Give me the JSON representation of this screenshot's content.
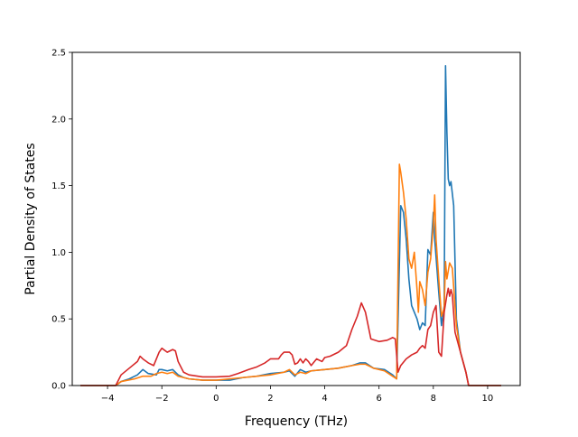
{
  "chart_data": {
    "type": "line",
    "title": "",
    "xlabel": "Frequency (THz)",
    "ylabel": "Partial Density of States",
    "xlim": [
      -5.3,
      11.2
    ],
    "ylim": [
      0,
      2.5
    ],
    "xticks": [
      -4,
      -2,
      0,
      2,
      4,
      6,
      8,
      10
    ],
    "xtick_labels": [
      "−4",
      "−2",
      "0",
      "2",
      "4",
      "6",
      "8",
      "10"
    ],
    "yticks": [
      0,
      0.5,
      1.0,
      1.5,
      2.0,
      2.5
    ],
    "ytick_labels": [
      "0.0",
      "0.5",
      "1.0",
      "1.5",
      "2.0",
      "2.5"
    ],
    "grid": false,
    "legend": "none",
    "series": [
      {
        "color": "#1f77b4",
        "points": [
          [
            -5.0,
            0
          ],
          [
            -3.7,
            0
          ],
          [
            -3.5,
            0.03
          ],
          [
            -3.2,
            0.05
          ],
          [
            -2.9,
            0.08
          ],
          [
            -2.7,
            0.12
          ],
          [
            -2.5,
            0.09
          ],
          [
            -2.2,
            0.08
          ],
          [
            -2.1,
            0.12
          ],
          [
            -2.0,
            0.12
          ],
          [
            -1.8,
            0.11
          ],
          [
            -1.6,
            0.12
          ],
          [
            -1.4,
            0.08
          ],
          [
            -1.2,
            0.06
          ],
          [
            -1.0,
            0.05
          ],
          [
            -0.5,
            0.04
          ],
          [
            0,
            0.04
          ],
          [
            0.5,
            0.04
          ],
          [
            1.0,
            0.06
          ],
          [
            1.5,
            0.07
          ],
          [
            2.0,
            0.09
          ],
          [
            2.5,
            0.1
          ],
          [
            2.7,
            0.11
          ],
          [
            2.9,
            0.07
          ],
          [
            3.1,
            0.12
          ],
          [
            3.3,
            0.1
          ],
          [
            3.5,
            0.11
          ],
          [
            4.0,
            0.12
          ],
          [
            4.5,
            0.13
          ],
          [
            5.0,
            0.15
          ],
          [
            5.3,
            0.17
          ],
          [
            5.5,
            0.17
          ],
          [
            5.8,
            0.13
          ],
          [
            6.2,
            0.12
          ],
          [
            6.5,
            0.08
          ],
          [
            6.65,
            0.05
          ],
          [
            6.8,
            1.35
          ],
          [
            6.9,
            1.3
          ],
          [
            7.0,
            1.1
          ],
          [
            7.1,
            0.8
          ],
          [
            7.2,
            0.6
          ],
          [
            7.4,
            0.5
          ],
          [
            7.5,
            0.42
          ],
          [
            7.6,
            0.47
          ],
          [
            7.7,
            0.45
          ],
          [
            7.8,
            1.02
          ],
          [
            7.9,
            0.98
          ],
          [
            8.0,
            1.3
          ],
          [
            8.05,
            1.1
          ],
          [
            8.2,
            0.7
          ],
          [
            8.3,
            0.45
          ],
          [
            8.4,
            0.6
          ],
          [
            8.45,
            2.4
          ],
          [
            8.5,
            1.9
          ],
          [
            8.55,
            1.55
          ],
          [
            8.6,
            1.5
          ],
          [
            8.65,
            1.53
          ],
          [
            8.75,
            1.35
          ],
          [
            8.85,
            0.5
          ],
          [
            9.0,
            0.25
          ],
          [
            9.2,
            0.1
          ],
          [
            9.3,
            0
          ],
          [
            10.5,
            0
          ]
        ]
      },
      {
        "color": "#ff7f0e",
        "points": [
          [
            -5.0,
            0
          ],
          [
            -3.7,
            0
          ],
          [
            -3.5,
            0.03
          ],
          [
            -3.0,
            0.05
          ],
          [
            -2.7,
            0.07
          ],
          [
            -2.4,
            0.07
          ],
          [
            -2.2,
            0.09
          ],
          [
            -2.0,
            0.1
          ],
          [
            -1.8,
            0.09
          ],
          [
            -1.6,
            0.1
          ],
          [
            -1.4,
            0.07
          ],
          [
            -1.2,
            0.06
          ],
          [
            -1.0,
            0.05
          ],
          [
            -0.5,
            0.04
          ],
          [
            0,
            0.04
          ],
          [
            0.5,
            0.05
          ],
          [
            1.0,
            0.06
          ],
          [
            1.5,
            0.07
          ],
          [
            2.0,
            0.08
          ],
          [
            2.5,
            0.1
          ],
          [
            2.7,
            0.12
          ],
          [
            2.9,
            0.08
          ],
          [
            3.1,
            0.1
          ],
          [
            3.3,
            0.09
          ],
          [
            3.5,
            0.11
          ],
          [
            4.0,
            0.12
          ],
          [
            4.5,
            0.13
          ],
          [
            5.0,
            0.15
          ],
          [
            5.3,
            0.16
          ],
          [
            5.5,
            0.16
          ],
          [
            5.8,
            0.13
          ],
          [
            6.2,
            0.11
          ],
          [
            6.5,
            0.07
          ],
          [
            6.65,
            0.05
          ],
          [
            6.75,
            1.66
          ],
          [
            6.8,
            1.6
          ],
          [
            6.9,
            1.45
          ],
          [
            7.0,
            1.25
          ],
          [
            7.1,
            0.95
          ],
          [
            7.2,
            0.88
          ],
          [
            7.3,
            1.0
          ],
          [
            7.4,
            0.72
          ],
          [
            7.45,
            0.55
          ],
          [
            7.5,
            0.78
          ],
          [
            7.6,
            0.72
          ],
          [
            7.7,
            0.6
          ],
          [
            7.8,
            0.85
          ],
          [
            7.9,
            0.95
          ],
          [
            8.0,
            1.2
          ],
          [
            8.05,
            1.43
          ],
          [
            8.1,
            1.1
          ],
          [
            8.2,
            0.8
          ],
          [
            8.3,
            0.52
          ],
          [
            8.4,
            0.58
          ],
          [
            8.45,
            0.93
          ],
          [
            8.5,
            0.8
          ],
          [
            8.6,
            0.92
          ],
          [
            8.7,
            0.88
          ],
          [
            8.85,
            0.45
          ],
          [
            9.0,
            0.25
          ],
          [
            9.2,
            0.1
          ],
          [
            9.3,
            0
          ],
          [
            10.5,
            0
          ]
        ]
      },
      {
        "color": "#d62728",
        "points": [
          [
            -5.0,
            0
          ],
          [
            -3.7,
            0
          ],
          [
            -3.6,
            0.04
          ],
          [
            -3.5,
            0.08
          ],
          [
            -3.2,
            0.13
          ],
          [
            -2.9,
            0.18
          ],
          [
            -2.8,
            0.22
          ],
          [
            -2.7,
            0.2
          ],
          [
            -2.5,
            0.17
          ],
          [
            -2.3,
            0.15
          ],
          [
            -2.1,
            0.25
          ],
          [
            -2.0,
            0.28
          ],
          [
            -1.8,
            0.25
          ],
          [
            -1.6,
            0.27
          ],
          [
            -1.5,
            0.26
          ],
          [
            -1.4,
            0.18
          ],
          [
            -1.2,
            0.1
          ],
          [
            -1.0,
            0.08
          ],
          [
            -0.5,
            0.065
          ],
          [
            0,
            0.065
          ],
          [
            0.5,
            0.07
          ],
          [
            0.8,
            0.09
          ],
          [
            1.2,
            0.12
          ],
          [
            1.5,
            0.14
          ],
          [
            1.8,
            0.17
          ],
          [
            2.0,
            0.2
          ],
          [
            2.3,
            0.2
          ],
          [
            2.4,
            0.23
          ],
          [
            2.5,
            0.25
          ],
          [
            2.7,
            0.25
          ],
          [
            2.8,
            0.23
          ],
          [
            2.9,
            0.16
          ],
          [
            3.0,
            0.17
          ],
          [
            3.1,
            0.2
          ],
          [
            3.2,
            0.17
          ],
          [
            3.3,
            0.2
          ],
          [
            3.4,
            0.18
          ],
          [
            3.5,
            0.15
          ],
          [
            3.7,
            0.2
          ],
          [
            3.9,
            0.18
          ],
          [
            4.0,
            0.21
          ],
          [
            4.2,
            0.22
          ],
          [
            4.5,
            0.25
          ],
          [
            4.8,
            0.3
          ],
          [
            5.0,
            0.42
          ],
          [
            5.2,
            0.52
          ],
          [
            5.35,
            0.62
          ],
          [
            5.5,
            0.55
          ],
          [
            5.6,
            0.45
          ],
          [
            5.7,
            0.35
          ],
          [
            6.0,
            0.33
          ],
          [
            6.3,
            0.34
          ],
          [
            6.5,
            0.36
          ],
          [
            6.6,
            0.35
          ],
          [
            6.7,
            0.1
          ],
          [
            6.8,
            0.15
          ],
          [
            7.0,
            0.2
          ],
          [
            7.2,
            0.23
          ],
          [
            7.4,
            0.25
          ],
          [
            7.5,
            0.28
          ],
          [
            7.6,
            0.3
          ],
          [
            7.7,
            0.28
          ],
          [
            7.8,
            0.42
          ],
          [
            7.9,
            0.45
          ],
          [
            8.0,
            0.55
          ],
          [
            8.1,
            0.6
          ],
          [
            8.2,
            0.25
          ],
          [
            8.3,
            0.22
          ],
          [
            8.4,
            0.55
          ],
          [
            8.5,
            0.68
          ],
          [
            8.55,
            0.73
          ],
          [
            8.6,
            0.67
          ],
          [
            8.65,
            0.72
          ],
          [
            8.7,
            0.68
          ],
          [
            8.8,
            0.4
          ],
          [
            9.0,
            0.25
          ],
          [
            9.2,
            0.1
          ],
          [
            9.3,
            0
          ],
          [
            10.5,
            0
          ]
        ]
      }
    ]
  }
}
